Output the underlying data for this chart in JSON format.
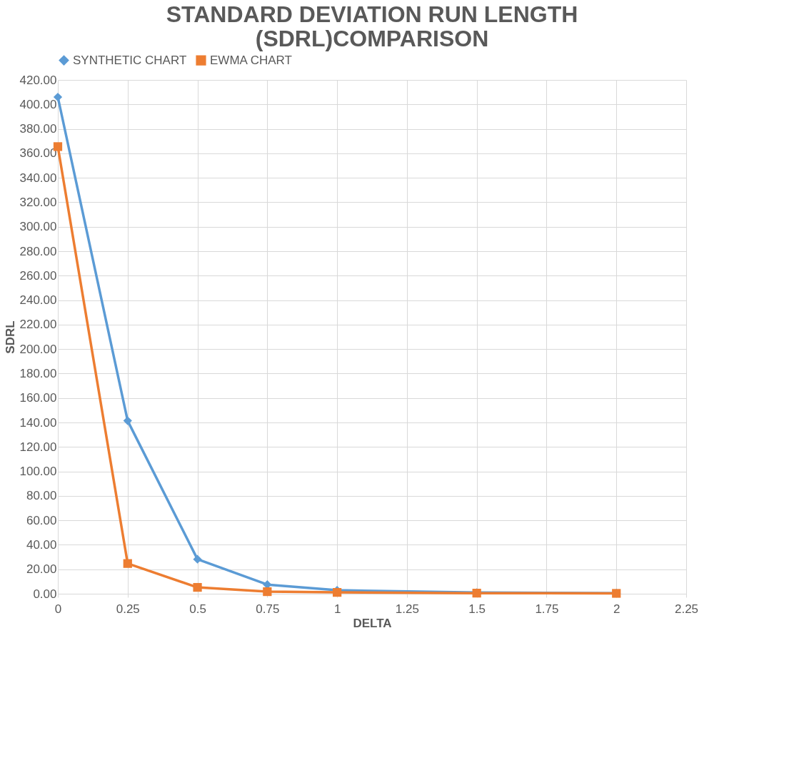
{
  "chart_data": {
    "type": "line",
    "title": [
      "STANDARD DEVIATION RUN LENGTH",
      "(SDRL)COMPARISON"
    ],
    "xlabel": "DELTA",
    "ylabel": "SDRL",
    "x": [
      0,
      0.25,
      0.5,
      0.75,
      1,
      1.5,
      2
    ],
    "series": [
      {
        "name": "SYNTHETIC CHART",
        "color": "#5b9bd5",
        "marker": "diamond",
        "values": [
          406,
          141.4,
          28.2,
          7.5,
          2.9,
          1.0,
          0.5
        ]
      },
      {
        "name": "EWMA CHART",
        "color": "#ed7d31",
        "marker": "square",
        "values": [
          365.5,
          24.7,
          5.2,
          1.7,
          1.1,
          0.5,
          0.3
        ]
      }
    ],
    "xlim": [
      0,
      2.25
    ],
    "xticks": [
      0,
      0.25,
      0.5,
      0.75,
      1,
      1.25,
      1.5,
      1.75,
      2,
      2.25
    ],
    "ylim": [
      0,
      420
    ],
    "yticks": [
      {
        "value": 0,
        "label": "0.00"
      },
      {
        "value": 20,
        "label": "20.00"
      },
      {
        "value": 40,
        "label": "40.00"
      },
      {
        "value": 60,
        "label": "60.00"
      },
      {
        "value": 80,
        "label": "80.00"
      },
      {
        "value": 100,
        "label": "100.00"
      },
      {
        "value": 120,
        "label": "120.00"
      },
      {
        "value": 140,
        "label": "140.00"
      },
      {
        "value": 160,
        "label": "160.00"
      },
      {
        "value": 180,
        "label": "180.00"
      },
      {
        "value": 200,
        "label": "200.00"
      },
      {
        "value": 220,
        "label": "220.00"
      },
      {
        "value": 240,
        "label": "240.00"
      },
      {
        "value": 260,
        "label": "260.00"
      },
      {
        "value": 280,
        "label": "280.00"
      },
      {
        "value": 300,
        "label": "300.00"
      },
      {
        "value": 320,
        "label": "320.00"
      },
      {
        "value": 340,
        "label": "340.00"
      },
      {
        "value": 360,
        "label": "360.00"
      },
      {
        "value": 380,
        "label": "380.00"
      },
      {
        "value": 400,
        "label": "400.00"
      },
      {
        "value": 420,
        "label": "420.00"
      }
    ],
    "grid": true,
    "legend": "top",
    "line_style": "solid"
  }
}
